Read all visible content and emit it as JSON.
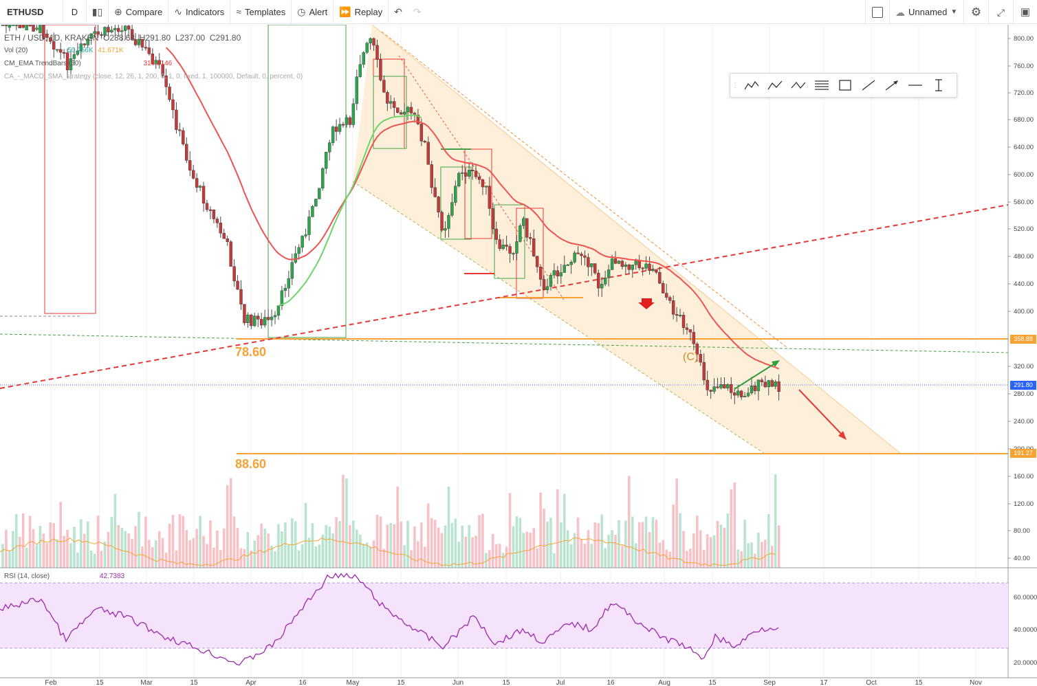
{
  "toolbar": {
    "symbol": "ETHUSD",
    "interval": "D",
    "compare": "Compare",
    "indicators": "Indicators",
    "templates": "Templates",
    "alert": "Alert",
    "replay": "Replay",
    "layout_name": "Unnamed"
  },
  "legend": {
    "main": "ETH / USD, 1D, KRAKEN",
    "open": "O288.63",
    "high": "H291.80",
    "low": "L237.00",
    "close": "C291.80",
    "vol_label": "Vol (20)",
    "vol_v1": "50.256K",
    "vol_v2": "41.671K",
    "ema_label": "CM_EMA TrendBars (30)",
    "ema_value": "314.0146",
    "macd_label": "CA_-_MACD_SMA_strategy (close, 12, 26, 1, 200, 0, 1, 0, fixed, 1, 100000, Default, 0, percent, 0)",
    "rsi_label": "RSI (14, close)",
    "rsi_value": "42.7383"
  },
  "chart_data": {
    "type": "candlestick",
    "symbol": "ETH / USD",
    "exchange": "KRAKEN",
    "timeframe": "1D",
    "ohlc_last": {
      "open": 288.63,
      "high": 291.8,
      "low": 237.0,
      "close": 291.8
    },
    "price_axis": [
      "800.00",
      "760.00",
      "720.00",
      "680.00",
      "640.00",
      "600.00",
      "560.00",
      "520.00",
      "480.00",
      "440.00",
      "400.00",
      "320.00",
      "280.00",
      "240.00",
      "200.00",
      "160.00",
      "120.00",
      "80.00",
      "40.00"
    ],
    "price_tags": [
      {
        "label": "358.88",
        "color": "#f7a233"
      },
      {
        "label": "291.80",
        "color": "#2962ff"
      },
      {
        "label": "191.27",
        "color": "#f7a233"
      }
    ],
    "fib_labels": [
      "78.60",
      "88.60"
    ],
    "pattern_label": "(C)",
    "time_axis": [
      "Feb",
      "15",
      "Mar",
      "15",
      "Apr",
      "16",
      "May",
      "15",
      "Jun",
      "15",
      "Jul",
      "16",
      "Aug",
      "15",
      "Sep",
      "17",
      "Oct",
      "15",
      "Nov"
    ],
    "rsi_axis": [
      "60.0000",
      "40.0000",
      "20.0000"
    ],
    "rsi_last": 42.7383
  }
}
